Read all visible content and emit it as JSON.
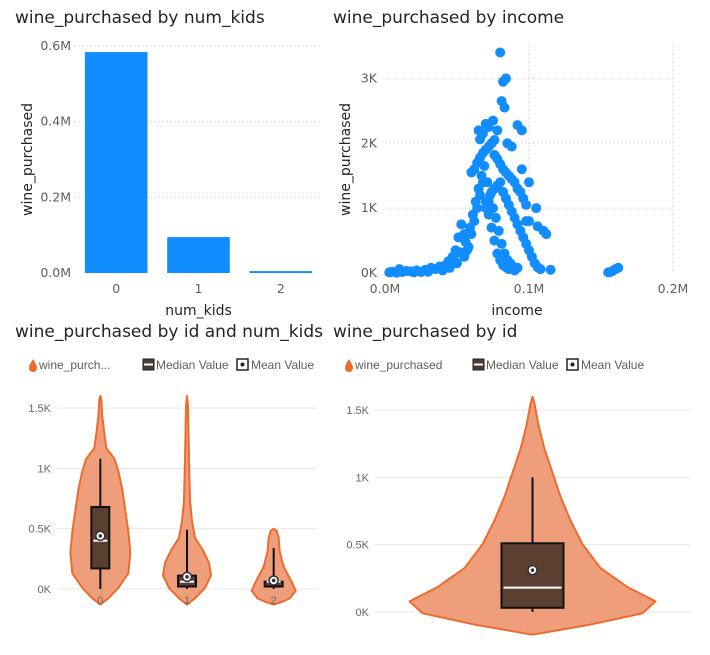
{
  "colors": {
    "blue": "#118dff",
    "orange": "#ec6b2d",
    "orange_fill": "#ef9e7b",
    "box_fill": "#5a3e30"
  },
  "chart_data": [
    {
      "type": "bar",
      "title": "wine_purchased by num_kids",
      "xlabel": "num_kids",
      "ylabel": "wine_purchased",
      "categories": [
        "0",
        "1",
        "2"
      ],
      "values": [
        584000,
        95000,
        5000
      ],
      "ylim": [
        0,
        600000
      ],
      "yticks": [
        {
          "v": 0,
          "label": "0.0M"
        },
        {
          "v": 200000,
          "label": "0.2M"
        },
        {
          "v": 400000,
          "label": "0.4M"
        },
        {
          "v": 600000,
          "label": "0.6M"
        }
      ],
      "grid": true
    },
    {
      "type": "scatter",
      "title": "wine_purchased by income",
      "xlabel": "income",
      "ylabel": "wine_purchased",
      "xlim": [
        0,
        200000
      ],
      "ylim": [
        0,
        3500
      ],
      "xticks": [
        {
          "v": 0,
          "label": "0.0M"
        },
        {
          "v": 100000,
          "label": "0.1M"
        },
        {
          "v": 200000,
          "label": "0.2M"
        }
      ],
      "yticks": [
        {
          "v": 0,
          "label": "0K"
        },
        {
          "v": 1000,
          "label": "1K"
        },
        {
          "v": 2000,
          "label": "2K"
        },
        {
          "v": 3000,
          "label": "3K"
        }
      ],
      "points": [
        [
          40000,
          40
        ],
        [
          45000,
          80
        ],
        [
          50000,
          150
        ],
        [
          55000,
          250
        ],
        [
          58000,
          400
        ],
        [
          60000,
          600
        ],
        [
          62000,
          800
        ],
        [
          64000,
          1000
        ],
        [
          66000,
          1200
        ],
        [
          68000,
          1400
        ],
        [
          70000,
          1100
        ],
        [
          72000,
          900
        ],
        [
          74000,
          700
        ],
        [
          76000,
          500
        ],
        [
          78000,
          300
        ],
        [
          80000,
          200
        ],
        [
          82000,
          120
        ],
        [
          84000,
          90
        ],
        [
          86000,
          60
        ],
        [
          90000,
          40
        ],
        [
          30000,
          20
        ],
        [
          25000,
          15
        ],
        [
          20000,
          10
        ],
        [
          15000,
          30
        ],
        [
          10000,
          60
        ],
        [
          5000,
          20
        ],
        [
          35000,
          60
        ],
        [
          42000,
          120
        ],
        [
          48000,
          200
        ],
        [
          52000,
          320
        ],
        [
          56000,
          480
        ],
        [
          59000,
          700
        ],
        [
          61000,
          900
        ],
        [
          63000,
          1100
        ],
        [
          65000,
          1300
        ],
        [
          67000,
          1500
        ],
        [
          69000,
          1650
        ],
        [
          71000,
          1400
        ],
        [
          73000,
          1200
        ],
        [
          75000,
          1000
        ],
        [
          77000,
          850
        ],
        [
          79000,
          650
        ],
        [
          81000,
          450
        ],
        [
          83000,
          300
        ],
        [
          85000,
          200
        ],
        [
          87000,
          150
        ],
        [
          89000,
          100
        ],
        [
          92000,
          80
        ],
        [
          60000,
          1550
        ],
        [
          62000,
          1600
        ],
        [
          64000,
          1700
        ],
        [
          66000,
          1780
        ],
        [
          68000,
          1850
        ],
        [
          70000,
          1900
        ],
        [
          72000,
          1950
        ],
        [
          74000,
          2000
        ],
        [
          76000,
          1820
        ],
        [
          78000,
          1760
        ],
        [
          80000,
          1680
        ],
        [
          82000,
          1600
        ],
        [
          84000,
          1550
        ],
        [
          86000,
          1500
        ],
        [
          88000,
          1450
        ],
        [
          90000,
          1400
        ],
        [
          92000,
          1300
        ],
        [
          94000,
          1250
        ],
        [
          96000,
          1150
        ],
        [
          98000,
          1050
        ],
        [
          65000,
          2200
        ],
        [
          68000,
          2150
        ],
        [
          70000,
          2300
        ],
        [
          72000,
          2250
        ],
        [
          74000,
          2000
        ],
        [
          76000,
          2050
        ],
        [
          78000,
          2200
        ],
        [
          85000,
          2000
        ],
        [
          88000,
          1950
        ],
        [
          95000,
          2200
        ],
        [
          92000,
          2280
        ],
        [
          66000,
          2060
        ],
        [
          82000,
          2950
        ],
        [
          84000,
          3000
        ],
        [
          80000,
          3400
        ],
        [
          81000,
          2650
        ],
        [
          83000,
          2550
        ],
        [
          75000,
          2350
        ],
        [
          95000,
          1600
        ],
        [
          100000,
          1400
        ],
        [
          105000,
          1000
        ],
        [
          110000,
          650
        ],
        [
          112000,
          600
        ],
        [
          106000,
          720
        ],
        [
          98000,
          800
        ],
        [
          100000,
          800
        ],
        [
          115000,
          50
        ],
        [
          155000,
          10
        ],
        [
          158000,
          30
        ],
        [
          160000,
          60
        ],
        [
          162000,
          80
        ],
        [
          157000,
          20
        ],
        [
          55000,
          600
        ],
        [
          57000,
          350
        ],
        [
          53000,
          750
        ],
        [
          51000,
          550
        ],
        [
          49000,
          350
        ],
        [
          47000,
          250
        ],
        [
          44000,
          180
        ],
        [
          38000,
          100
        ],
        [
          32000,
          80
        ],
        [
          28000,
          50
        ],
        [
          22000,
          40
        ],
        [
          18000,
          25
        ],
        [
          12000,
          15
        ],
        [
          8000,
          5
        ],
        [
          3000,
          10
        ],
        [
          70000,
          1000
        ],
        [
          72000,
          1100
        ],
        [
          74000,
          1250
        ],
        [
          76000,
          1300
        ],
        [
          78000,
          1350
        ],
        [
          80000,
          1400
        ],
        [
          82000,
          1250
        ],
        [
          84000,
          1150
        ],
        [
          86000,
          1050
        ],
        [
          88000,
          950
        ],
        [
          90000,
          850
        ],
        [
          92000,
          750
        ],
        [
          94000,
          650
        ],
        [
          96000,
          550
        ],
        [
          98000,
          450
        ],
        [
          100000,
          350
        ],
        [
          102000,
          250
        ],
        [
          104000,
          150
        ],
        [
          106000,
          90
        ],
        [
          108000,
          60
        ]
      ],
      "grid": true
    },
    {
      "type": "violin",
      "title": "wine_purchased by id and num_kids",
      "legend": [
        "wine_purch...",
        "Median Value",
        "Mean Value"
      ],
      "categories": [
        "0",
        "1",
        "2"
      ],
      "ylim": [
        -150,
        1650
      ],
      "yticks": [
        {
          "v": 0,
          "label": "0K"
        },
        {
          "v": 500,
          "label": "0.5K"
        },
        {
          "v": 1000,
          "label": "1K"
        },
        {
          "v": 1500,
          "label": "1.5K"
        }
      ],
      "groups": [
        {
          "min": 0,
          "q1": 170,
          "median": 400,
          "q3": 680,
          "max": 1080,
          "mean": 440,
          "top": 1600
        },
        {
          "min": 0,
          "q1": 20,
          "median": 60,
          "q3": 110,
          "max": 490,
          "mean": 100,
          "top": 1600
        },
        {
          "min": 0,
          "q1": 20,
          "median": 60,
          "q3": 60,
          "max": 340,
          "mean": 70,
          "top": 500
        }
      ]
    },
    {
      "type": "violin",
      "title": "wine_purchased by id",
      "legend": [
        "wine_purchased",
        "Median Value",
        "Mean Value"
      ],
      "categories": [
        ""
      ],
      "ylim": [
        -150,
        1650
      ],
      "yticks": [
        {
          "v": 0,
          "label": "0K"
        },
        {
          "v": 500,
          "label": "0.5K"
        },
        {
          "v": 1000,
          "label": "1K"
        },
        {
          "v": 1500,
          "label": "1.5K"
        }
      ],
      "groups": [
        {
          "min": 0,
          "q1": 30,
          "median": 180,
          "q3": 510,
          "max": 1000,
          "mean": 310,
          "top": 1600
        }
      ]
    }
  ]
}
